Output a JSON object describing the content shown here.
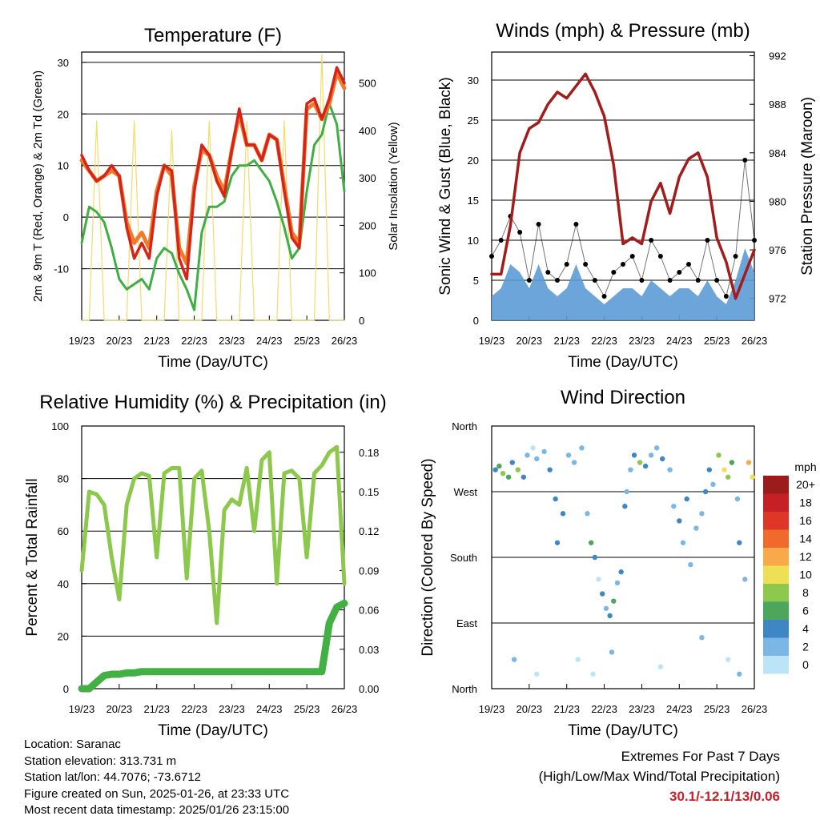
{
  "colors": {
    "t2m": "#d62418",
    "t9m": "#f07a2a",
    "td": "#3fae43",
    "solar": "#f2dc68",
    "sonic": "#5b9bd5",
    "gust": "#000000",
    "pressure": "#a31c1c",
    "rh": "#8cc84b",
    "precip": "#42b043"
  },
  "time_ticks": [
    "19/23",
    "20/23",
    "21/23",
    "22/23",
    "23/23",
    "24/23",
    "25/23",
    "26/23"
  ],
  "time_label": "Time (Day/UTC)",
  "chart_data": [
    {
      "id": "temperature",
      "type": "line",
      "title": "Temperature (F)",
      "ylabel": "2m & 9m T (Red, Orange) & 2m Td (Green)",
      "ylabel_right": "Solar Insolation (Yellow)",
      "ylim": [
        -20,
        32
      ],
      "yticks": [
        30,
        20,
        10,
        0,
        -10
      ],
      "ylim_right": [
        0,
        565
      ],
      "yticks_right": [
        500,
        400,
        300,
        200,
        100,
        0
      ],
      "x": [
        0,
        0.2,
        0.4,
        0.6,
        0.8,
        1,
        1.2,
        1.4,
        1.6,
        1.8,
        2,
        2.2,
        2.4,
        2.6,
        2.8,
        3,
        3.2,
        3.4,
        3.6,
        3.8,
        4,
        4.2,
        4.4,
        4.6,
        4.8,
        5,
        5.2,
        5.4,
        5.6,
        5.8,
        6,
        6.2,
        6.4,
        6.6,
        6.8,
        7
      ],
      "series": [
        {
          "name": "2m T",
          "values": [
            12,
            9,
            7,
            8,
            10,
            8,
            -2,
            -8,
            -5,
            -8,
            4,
            10,
            9,
            -8,
            -12,
            5,
            14,
            12,
            7,
            4,
            13,
            21,
            14,
            14,
            11,
            16,
            15,
            5,
            -4,
            -6,
            22,
            23,
            19,
            23,
            29,
            26
          ]
        },
        {
          "name": "9m T",
          "values": [
            11,
            9,
            7,
            8,
            9,
            8,
            -1,
            -5,
            -3,
            -6,
            5,
            10,
            8,
            -6,
            -9,
            6,
            13,
            12,
            8,
            5,
            13,
            20,
            14,
            14,
            11,
            16,
            15,
            6,
            -3,
            -5,
            21,
            22,
            19,
            22,
            28,
            25
          ]
        },
        {
          "name": "2m Td",
          "values": [
            -5,
            2,
            1,
            -1,
            -6,
            -12,
            -14,
            -13,
            -12,
            -14,
            -8,
            -6,
            -7,
            -11,
            -14,
            -18,
            -3,
            2,
            2,
            3,
            8,
            10,
            10,
            11,
            9,
            7,
            3,
            -2,
            -8,
            -6,
            5,
            14,
            16,
            22,
            18,
            5
          ]
        },
        {
          "name": "Solar",
          "axis": "right",
          "values": [
            0,
            0,
            420,
            0,
            0,
            0,
            0,
            420,
            0,
            0,
            0,
            0,
            400,
            0,
            0,
            0,
            0,
            420,
            0,
            0,
            0,
            0,
            420,
            0,
            0,
            0,
            0,
            420,
            0,
            0,
            0,
            0,
            560,
            0,
            0,
            0
          ]
        }
      ]
    },
    {
      "id": "winds",
      "type": "line",
      "title": "Winds (mph) & Pressure (mb)",
      "ylabel": "Sonic Wind & Gust (Blue, Black)",
      "ylabel_right": "Station Pressure (Maroon)",
      "ylim": [
        0,
        33.5
      ],
      "yticks": [
        0,
        5,
        10,
        15,
        20,
        25,
        30
      ],
      "ylim_right": [
        970.2,
        992.3
      ],
      "yticks_right": [
        972,
        976,
        980,
        984,
        988,
        992
      ],
      "x": [
        0,
        0.25,
        0.5,
        0.75,
        1,
        1.25,
        1.5,
        1.75,
        2,
        2.25,
        2.5,
        2.75,
        3,
        3.25,
        3.5,
        3.75,
        4,
        4.25,
        4.5,
        4.75,
        5,
        5.25,
        5.5,
        5.75,
        6,
        6.25,
        6.5,
        6.75,
        7
      ],
      "series": [
        {
          "name": "Sonic Wind",
          "values": [
            3,
            4,
            7,
            6,
            4,
            7,
            4,
            3,
            4,
            7,
            4,
            3,
            2,
            3,
            4,
            4,
            3,
            5,
            4,
            3,
            4,
            4,
            3,
            5,
            3,
            2,
            5,
            9,
            6
          ]
        },
        {
          "name": "Gust",
          "values": [
            8,
            10,
            13,
            11,
            5,
            12,
            6,
            5,
            7,
            12,
            7,
            5,
            3,
            6,
            7,
            8,
            5,
            10,
            8,
            5,
            6,
            7,
            5,
            10,
            5,
            3,
            8,
            20,
            10
          ]
        },
        {
          "name": "Station Pressure",
          "axis": "right",
          "values": [
            974,
            974,
            978,
            984,
            986,
            986.5,
            988,
            989,
            988.5,
            989.5,
            990.5,
            989,
            987,
            983,
            976.5,
            977,
            976.5,
            980,
            981.5,
            979,
            982,
            983.5,
            984,
            982,
            977,
            975,
            972,
            974,
            976
          ]
        }
      ]
    },
    {
      "id": "rh_precip",
      "type": "line",
      "title": "Relative Humidity (%) & Precipitation (in)",
      "ylabel": "Percent & Total Rainfall",
      "ylim": [
        0,
        100
      ],
      "yticks": [
        0,
        20,
        40,
        60,
        80,
        100
      ],
      "ylim_right": [
        0,
        0.2
      ],
      "yticks_right": [
        "0.00",
        "0.03",
        "0.06",
        "0.09",
        "0.12",
        "0.15",
        "0.18"
      ],
      "x": [
        0,
        0.2,
        0.4,
        0.6,
        0.8,
        1,
        1.2,
        1.4,
        1.6,
        1.8,
        2,
        2.2,
        2.4,
        2.6,
        2.8,
        3,
        3.2,
        3.4,
        3.6,
        3.8,
        4,
        4.2,
        4.4,
        4.6,
        4.8,
        5,
        5.2,
        5.4,
        5.6,
        5.8,
        6,
        6.2,
        6.4,
        6.6,
        6.8,
        7
      ],
      "series": [
        {
          "name": "RH",
          "values": [
            45,
            75,
            74,
            70,
            50,
            34,
            70,
            80,
            82,
            81,
            50,
            82,
            84,
            84,
            42,
            80,
            83,
            60,
            25,
            68,
            72,
            70,
            84,
            60,
            87,
            90,
            40,
            82,
            83,
            80,
            50,
            82,
            85,
            90,
            92,
            40
          ]
        },
        {
          "name": "Precip",
          "axis": "right",
          "values": [
            0,
            0,
            0.005,
            0.01,
            0.011,
            0.011,
            0.012,
            0.012,
            0.013,
            0.013,
            0.013,
            0.013,
            0.013,
            0.013,
            0.013,
            0.013,
            0.013,
            0.013,
            0.013,
            0.013,
            0.013,
            0.013,
            0.013,
            0.013,
            0.013,
            0.013,
            0.013,
            0.013,
            0.013,
            0.013,
            0.013,
            0.013,
            0.013,
            0.05,
            0.062,
            0.065
          ]
        }
      ]
    },
    {
      "id": "wind_direction",
      "type": "scatter",
      "title": "Wind Direction",
      "ylabel": "Direction (Colored By Speed)",
      "ytick_labels": [
        "North",
        "East",
        "South",
        "West",
        "North"
      ],
      "ylim": [
        0,
        360
      ],
      "points": [
        [
          0.1,
          300,
          4
        ],
        [
          0.2,
          305,
          6
        ],
        [
          0.3,
          295,
          8
        ],
        [
          0.45,
          290,
          6
        ],
        [
          0.55,
          310,
          4
        ],
        [
          0.7,
          300,
          8
        ],
        [
          0.85,
          290,
          4
        ],
        [
          0.95,
          320,
          2
        ],
        [
          1.1,
          330,
          0
        ],
        [
          1.2,
          315,
          2
        ],
        [
          1.4,
          325,
          2
        ],
        [
          1.55,
          300,
          4
        ],
        [
          1.7,
          260,
          4
        ],
        [
          1.75,
          200,
          4
        ],
        [
          1.9,
          240,
          4
        ],
        [
          2.05,
          320,
          2
        ],
        [
          2.2,
          310,
          2
        ],
        [
          2.4,
          330,
          2
        ],
        [
          2.55,
          240,
          2
        ],
        [
          2.65,
          200,
          6
        ],
        [
          2.75,
          180,
          4
        ],
        [
          2.85,
          150,
          0
        ],
        [
          2.95,
          130,
          4
        ],
        [
          3.05,
          110,
          2
        ],
        [
          3.15,
          100,
          4
        ],
        [
          3.25,
          120,
          6
        ],
        [
          3.35,
          145,
          2
        ],
        [
          3.45,
          160,
          4
        ],
        [
          3.55,
          250,
          4
        ],
        [
          3.6,
          270,
          2
        ],
        [
          3.7,
          300,
          2
        ],
        [
          3.8,
          320,
          4
        ],
        [
          3.95,
          310,
          8
        ],
        [
          4.1,
          305,
          4
        ],
        [
          4.25,
          320,
          2
        ],
        [
          4.4,
          330,
          2
        ],
        [
          4.55,
          315,
          4
        ],
        [
          4.75,
          300,
          2
        ],
        [
          4.85,
          250,
          2
        ],
        [
          5,
          230,
          4
        ],
        [
          5.1,
          200,
          2
        ],
        [
          5.2,
          260,
          4
        ],
        [
          5.3,
          170,
          2
        ],
        [
          5.45,
          220,
          2
        ],
        [
          5.6,
          240,
          2
        ],
        [
          5.7,
          270,
          4
        ],
        [
          5.8,
          300,
          4
        ],
        [
          5.9,
          280,
          2
        ],
        [
          6.05,
          320,
          8
        ],
        [
          6.2,
          300,
          10
        ],
        [
          6.3,
          290,
          8
        ],
        [
          6.4,
          310,
          6
        ],
        [
          6.55,
          260,
          2
        ],
        [
          6.6,
          200,
          4
        ],
        [
          6.75,
          150,
          2
        ],
        [
          6.85,
          310,
          12
        ],
        [
          6.95,
          290,
          10
        ],
        [
          0.6,
          40,
          2
        ],
        [
          1.2,
          20,
          0
        ],
        [
          2.3,
          40,
          0
        ],
        [
          2.7,
          20,
          0
        ],
        [
          3.2,
          50,
          2
        ],
        [
          4.5,
          30,
          0
        ],
        [
          5.6,
          70,
          2
        ],
        [
          6.3,
          40,
          0
        ],
        [
          6.6,
          20,
          2
        ]
      ],
      "colorbar": {
        "title": "mph",
        "labels": [
          "20+",
          "18",
          "16",
          "14",
          "12",
          "10",
          "8",
          "6",
          "4",
          "2",
          "0"
        ],
        "colors": [
          "#9c1c1c",
          "#c62026",
          "#de3727",
          "#ef6a2b",
          "#f9a84a",
          "#eee055",
          "#8cc84b",
          "#4ca65b",
          "#3f86c4",
          "#7ab7e6",
          "#bde4f6"
        ]
      }
    }
  ],
  "info": {
    "location": "Location: Saranac",
    "elevation": "Station elevation: 313.731 m",
    "latlon": "Station lat/lon: 44.7076; -73.6712",
    "created": "Figure created on Sun, 2025-01-26, at 23:33 UTC",
    "latest": "Most recent data timestamp: 2025/01/26 23:15:00"
  },
  "extremes": {
    "title": "Extremes For Past 7 Days",
    "subtitle": "(High/Low/Max Wind/Total Precipitation)",
    "value": "30.1/-12.1/13/0.06"
  }
}
